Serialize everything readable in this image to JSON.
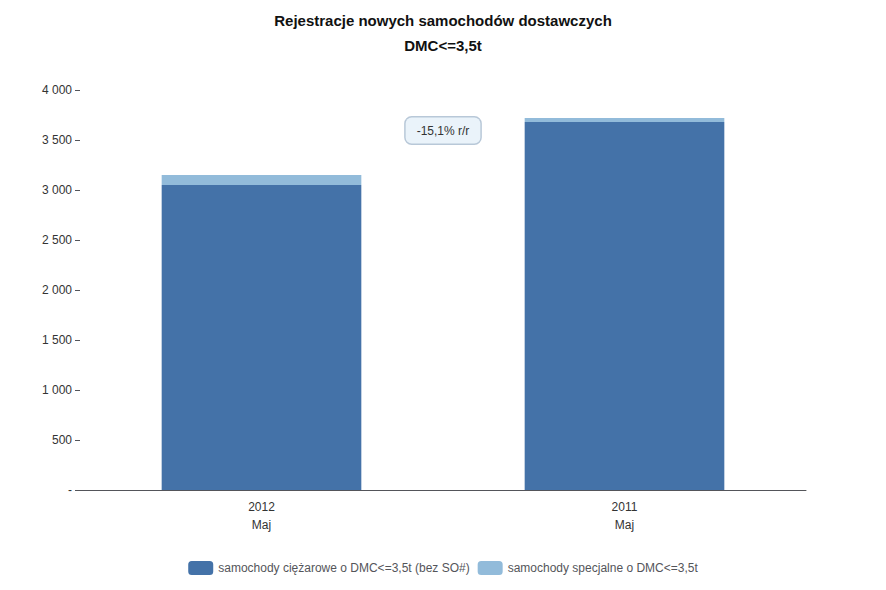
{
  "chart_data": {
    "type": "bar",
    "title": "Rejestracje nowych samochodów dostawczych",
    "subtitle": "DMC<=3,5t",
    "categories": [
      "2012\nMaj",
      "2011\nMaj"
    ],
    "series": [
      {
        "name": "samochody ciężarowe o DMC<=3,5t (bez SO#)",
        "color": "#4472A8",
        "values": [
          3050,
          3680
        ]
      },
      {
        "name": "samochody specjalne o DMC<=3,5t",
        "color": "#92BBDA",
        "values": [
          100,
          40
        ]
      }
    ],
    "stacked": true,
    "ylim": [
      0,
      4000
    ],
    "yticks": [
      {
        "value": 0,
        "label": "-"
      },
      500,
      {
        "value": 1000,
        "label": "1 000"
      },
      {
        "value": 1500,
        "label": "1 500"
      },
      {
        "value": 2000,
        "label": "2 000"
      },
      {
        "value": 2500,
        "label": "2 500"
      },
      {
        "value": 3000,
        "label": "3 000"
      },
      {
        "value": 3500,
        "label": "3 500"
      },
      {
        "value": 4000,
        "label": "4 000"
      }
    ],
    "grid": false,
    "legend": "bottom",
    "annotations": [
      "-15,1% r/r"
    ]
  }
}
